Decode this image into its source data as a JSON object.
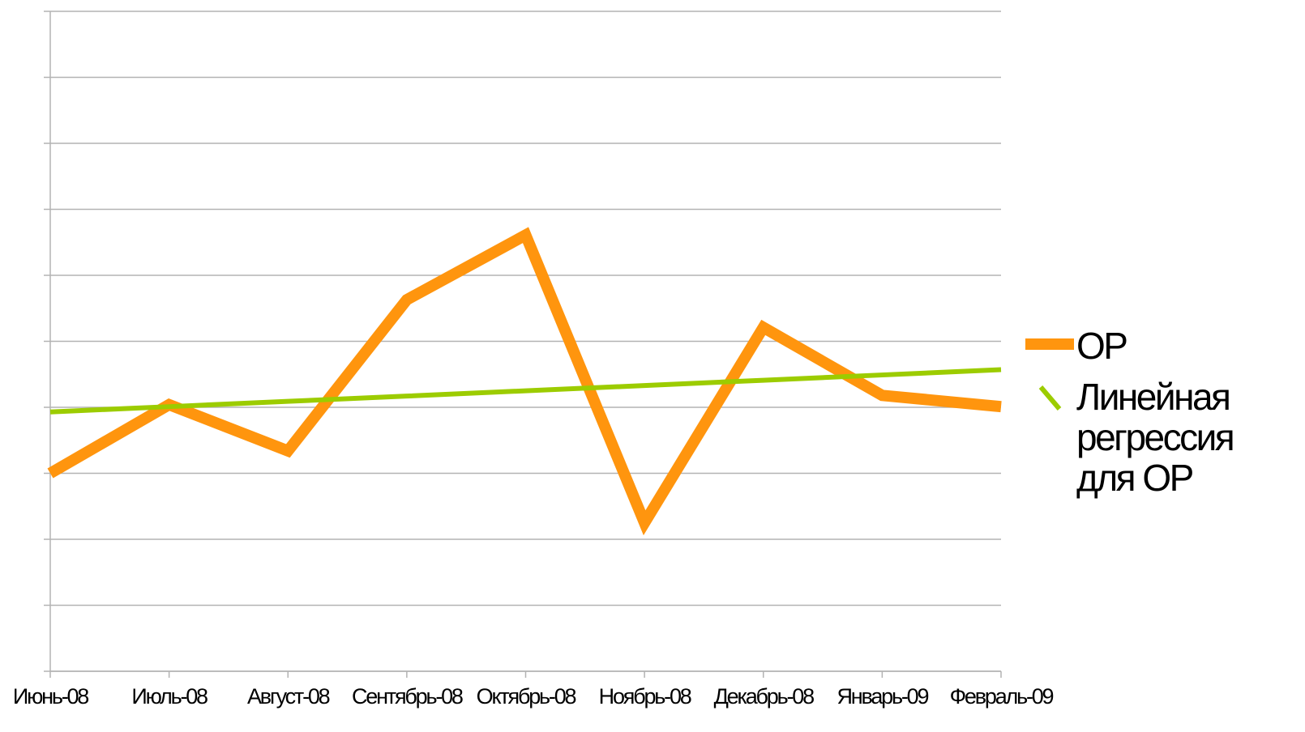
{
  "chart_data": {
    "type": "line",
    "categories": [
      "Июнь-08",
      "Июль-08",
      "Август-08",
      "Сентябрь-08",
      "Октябрь-08",
      "Ноябрь-08",
      "Декабрь-08",
      "Январь-09",
      "Февраль-09"
    ],
    "series": [
      {
        "name": "OP",
        "color": "#ff950e",
        "values": [
          3.0,
          4.04,
          3.34,
          5.63,
          6.61,
          2.25,
          5.21,
          4.18,
          4.01
        ]
      },
      {
        "name": "Линейная регрессия для OP",
        "color": "#9ccc00",
        "values": [
          3.93,
          4.01,
          4.09,
          4.17,
          4.25,
          4.33,
          4.41,
          4.49,
          4.57
        ]
      }
    ],
    "ylim": [
      0,
      10
    ],
    "yticks": [
      0,
      1,
      2,
      3,
      4,
      5,
      6,
      7,
      8,
      9,
      10
    ],
    "grid": true,
    "legend": "right"
  }
}
